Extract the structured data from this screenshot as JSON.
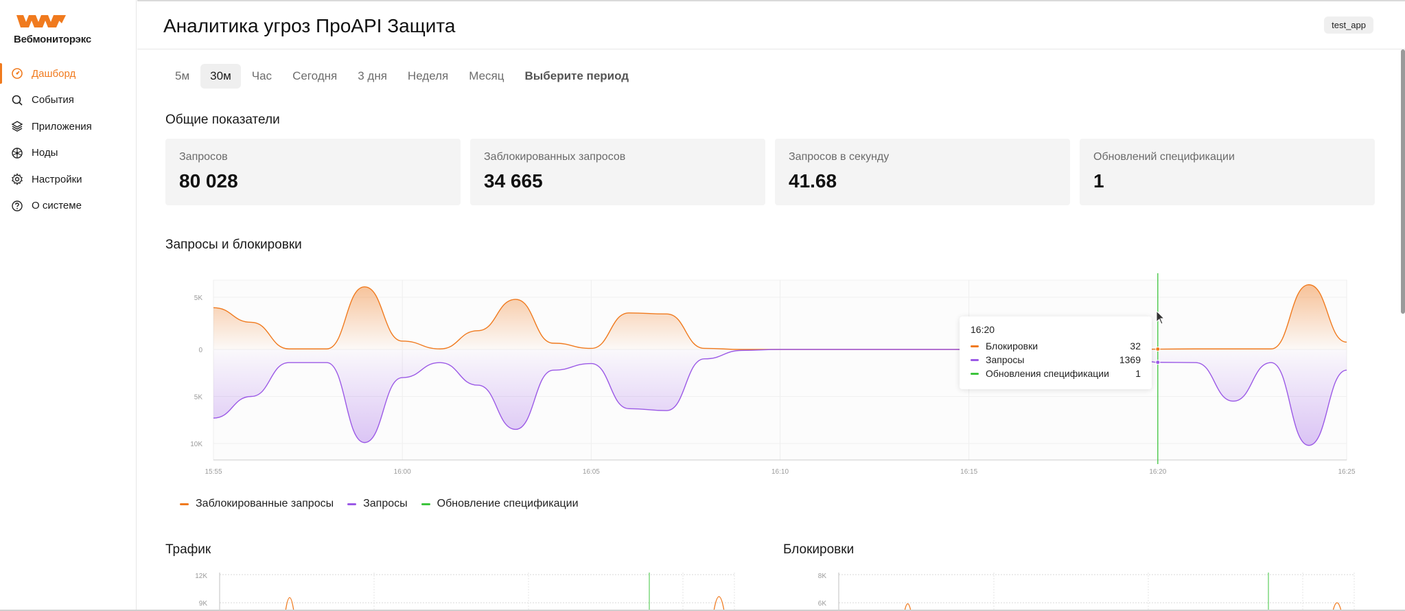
{
  "app": {
    "brand": "Вебмониторэкс",
    "title": "Аналитика угроз ПроAPI Защита",
    "app_badge": "test_app",
    "accent_color": "#f07a1e"
  },
  "sidebar": {
    "items": [
      {
        "label": "Дашборд",
        "icon": "dashboard-icon",
        "active": true
      },
      {
        "label": "События",
        "icon": "search-icon",
        "active": false
      },
      {
        "label": "Приложения",
        "icon": "layers-icon",
        "active": false
      },
      {
        "label": "Ноды",
        "icon": "node-icon",
        "active": false
      },
      {
        "label": "Настройки",
        "icon": "gear-icon",
        "active": false
      },
      {
        "label": "О системе",
        "icon": "help-icon",
        "active": false
      }
    ]
  },
  "periods": {
    "tabs": [
      "5м",
      "30м",
      "Час",
      "Сегодня",
      "3 дня",
      "Неделя",
      "Месяц",
      "Выберите период"
    ],
    "selected": "30м"
  },
  "overview": {
    "title": "Общие показатели",
    "cards": [
      {
        "label": "Запросов",
        "value": "80 028"
      },
      {
        "label": "Заблокированных запросов",
        "value": "34 665"
      },
      {
        "label": "Запросов в секунду",
        "value": "41.68"
      },
      {
        "label": "Обновлений спецификации",
        "value": "1"
      }
    ]
  },
  "requests_chart": {
    "title": "Запросы и блокировки",
    "legend": [
      {
        "label": "Заблокированные запросы",
        "color": "#f07a1e"
      },
      {
        "label": "Запросы",
        "color": "#9b59e6"
      },
      {
        "label": "Обновление спецификации",
        "color": "#3cc43c"
      }
    ],
    "tooltip": {
      "time": "16:20",
      "rows": [
        {
          "name": "Блокировки",
          "value": "32",
          "color": "#f07a1e"
        },
        {
          "name": "Запросы",
          "value": "1369",
          "color": "#9b59e6"
        },
        {
          "name": "Обновления спецификации",
          "value": "1",
          "color": "#3cc43c"
        }
      ]
    }
  },
  "traffic": {
    "title": "Трафик",
    "yticks": [
      "12K",
      "9K"
    ]
  },
  "blocks": {
    "title": "Блокировки",
    "yticks": [
      "8K",
      "6K"
    ]
  },
  "chart_data": {
    "type": "area",
    "x": [
      "15:55",
      "15:56",
      "15:57",
      "15:58",
      "15:59",
      "16:00",
      "16:01",
      "16:02",
      "16:03",
      "16:04",
      "16:05",
      "16:06",
      "16:07",
      "16:08",
      "16:09",
      "16:10",
      "16:11",
      "16:12",
      "16:13",
      "16:14",
      "16:15",
      "16:16",
      "16:17",
      "16:18",
      "16:19",
      "16:20",
      "16:21",
      "16:22",
      "16:23",
      "16:24",
      "16:25"
    ],
    "xticks": [
      "15:55",
      "16:00",
      "16:05",
      "16:10",
      "16:15",
      "16:20",
      "16:25"
    ],
    "yticks_upper": [
      "5K",
      "0"
    ],
    "yticks_lower": [
      "5K",
      "10K"
    ],
    "series": [
      {
        "name": "Заблокированные запросы",
        "color": "#f07a1e",
        "values": [
          4000,
          2600,
          50,
          50,
          6000,
          800,
          50,
          1800,
          4800,
          600,
          100,
          3500,
          3400,
          100,
          0,
          0,
          0,
          0,
          0,
          0,
          0,
          0,
          0,
          0,
          0,
          32,
          50,
          50,
          50,
          6200,
          700
        ]
      },
      {
        "name": "Запросы",
        "color": "#9b59e6",
        "values": [
          7300,
          5000,
          1400,
          1400,
          9900,
          3000,
          1400,
          3800,
          8500,
          2200,
          1500,
          6300,
          6500,
          1000,
          100,
          0,
          0,
          0,
          0,
          0,
          0,
          0,
          0,
          0,
          0,
          1369,
          1400,
          5500,
          1400,
          10200,
          2200
        ]
      }
    ],
    "events": [
      {
        "name": "Обновление спецификации",
        "x": "16:20",
        "value": 1,
        "color": "#3cc43c"
      }
    ]
  }
}
